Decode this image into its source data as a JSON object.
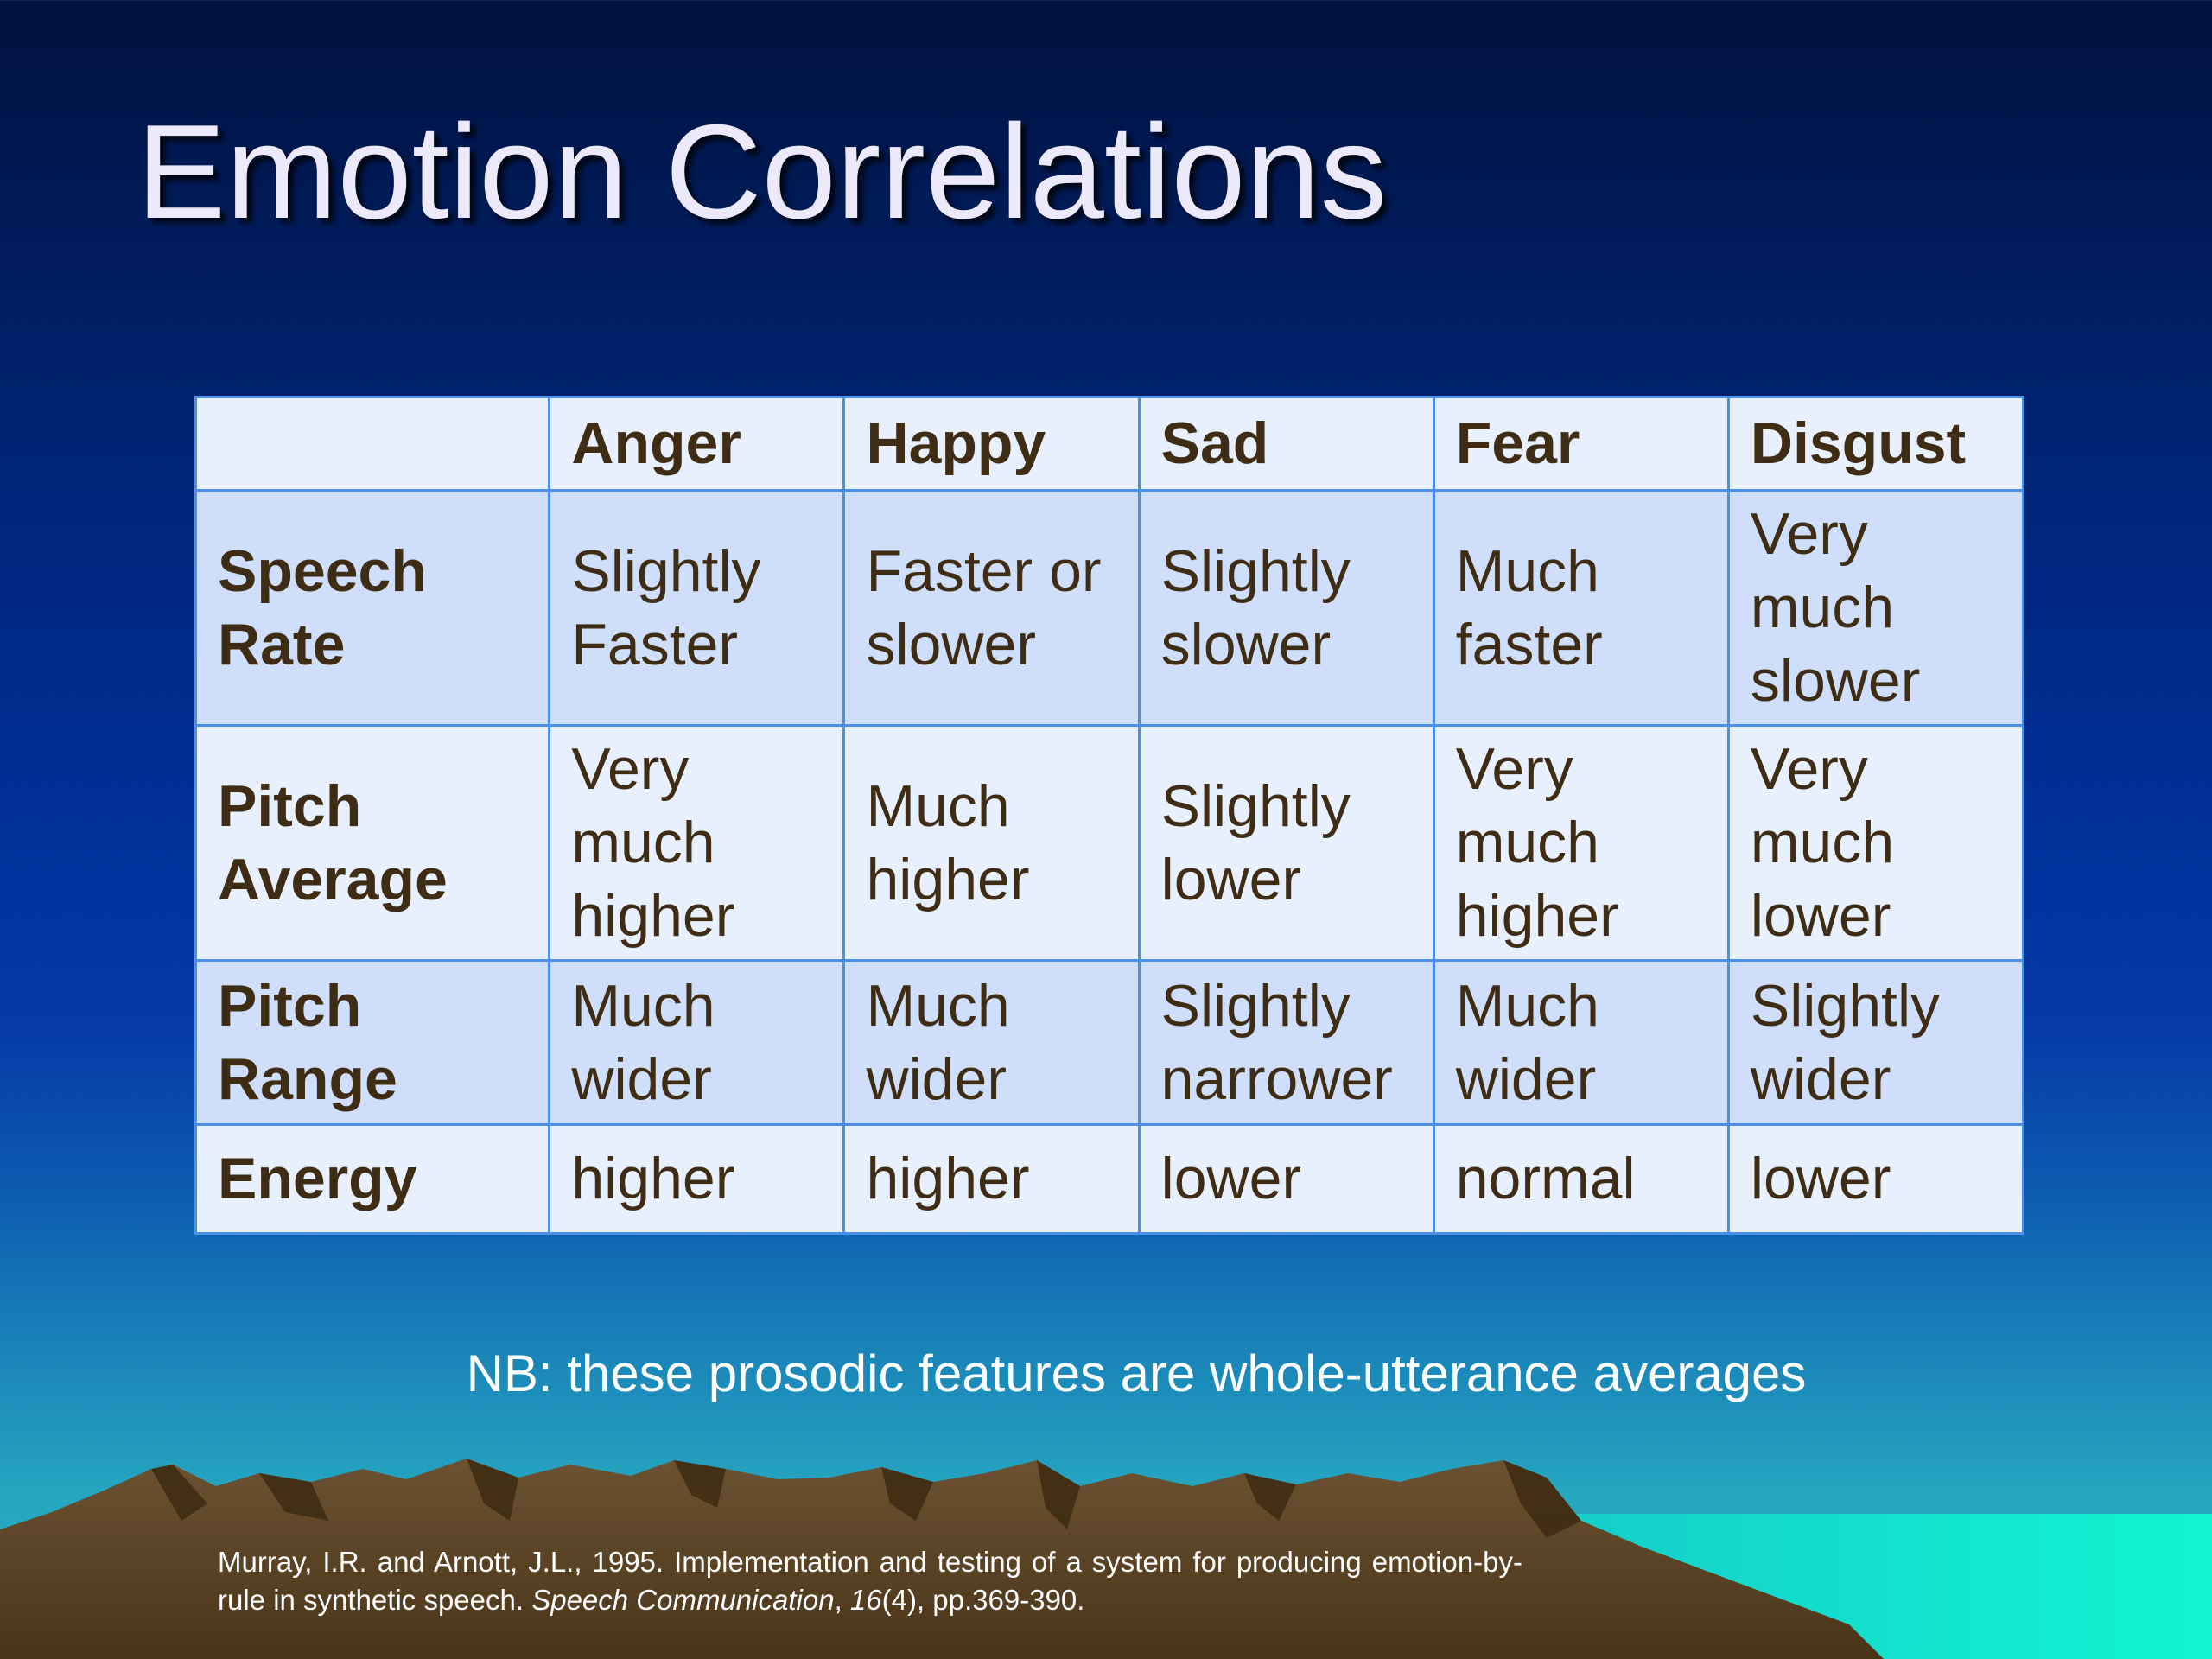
{
  "slide": {
    "title": "Emotion Correlations",
    "note": "NB: these prosodic features are whole-utterance averages",
    "citation": {
      "line1": "Murray, I.R. and Arnott, J.L., 1995. Implementation and testing of a system for producing",
      "line2_plain_a": "emotion-by-rule in synthetic speech. ",
      "journal": "Speech Communication",
      "sep1": ", ",
      "volume": "16",
      "rest": "(4), pp.369-390."
    }
  },
  "table": {
    "columns": [
      "",
      "Anger",
      "Happy",
      "Sad",
      "Fear",
      "Disgust"
    ],
    "rows": [
      {
        "label": [
          "Speech",
          "Rate"
        ],
        "cells": [
          [
            "Slightly",
            "Faster"
          ],
          [
            "Faster or",
            "slower"
          ],
          [
            "Slightly",
            "slower"
          ],
          [
            "Much",
            "faster"
          ],
          [
            "Very",
            "much",
            "slower"
          ]
        ]
      },
      {
        "label": [
          "Pitch",
          "Average"
        ],
        "cells": [
          [
            "Very",
            "much",
            "higher"
          ],
          [
            "Much",
            "higher"
          ],
          [
            "Slightly",
            "lower"
          ],
          [
            "Very",
            "much",
            "higher"
          ],
          [
            "Very",
            "much",
            "lower"
          ]
        ]
      },
      {
        "label": [
          "Pitch",
          "Range"
        ],
        "cells": [
          [
            "Much",
            "wider"
          ],
          [
            "Much",
            "wider"
          ],
          [
            "Slightly",
            "narrower"
          ],
          [
            "Much",
            "wider"
          ],
          [
            "Slightly",
            "wider"
          ]
        ]
      },
      {
        "label": [
          "Energy"
        ],
        "cells": [
          [
            "higher"
          ],
          [
            "higher"
          ],
          [
            "lower"
          ],
          [
            "normal"
          ],
          [
            "lower"
          ]
        ]
      }
    ]
  },
  "colors": {
    "background_top": "#00123f",
    "background_bottom": "#2bb2c3",
    "table_border": "#4a8fe8",
    "row_light": "#e9f0fd",
    "row_dark": "#cfdffb",
    "table_text": "#3e2c14",
    "mountain": "#5a4428",
    "water": "#10f0d0"
  }
}
